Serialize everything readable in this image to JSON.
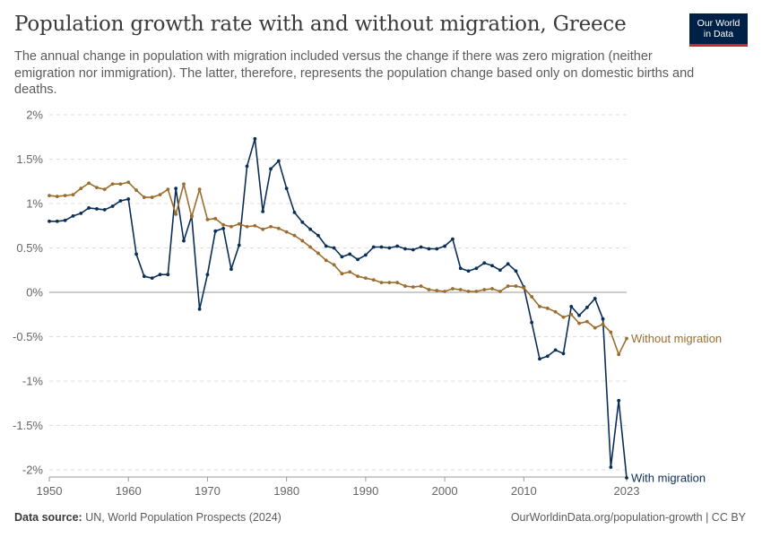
{
  "header": {
    "title": "Population growth rate with and without migration, Greece",
    "subtitle": "The annual change in population with migration included versus the change if there was zero migration (neither emigration nor immigration). The latter, therefore, represents the population change based only on domestic births and deaths."
  },
  "logo": {
    "line1": "Our World",
    "line2": "in Data",
    "bg_color": "#002147",
    "accent_color": "#ce261e"
  },
  "footer": {
    "source_label": "Data source:",
    "source_text": "UN, World Population Prospects (2024)",
    "url_text": "OurWorldinData.org/population-growth | CC BY"
  },
  "chart_data": {
    "type": "line",
    "x_label": "",
    "y_label": "",
    "xlim": [
      1950,
      2023
    ],
    "ylim": [
      -2,
      2
    ],
    "y_ticks": [
      {
        "value": 2,
        "label": "2%"
      },
      {
        "value": 1.5,
        "label": "1.5%"
      },
      {
        "value": 1,
        "label": "1%"
      },
      {
        "value": 0.5,
        "label": "0.5%"
      },
      {
        "value": 0,
        "label": "0%"
      },
      {
        "value": -0.5,
        "label": "-0.5%"
      },
      {
        "value": -1,
        "label": "-1%"
      },
      {
        "value": -1.5,
        "label": "-1.5%"
      },
      {
        "value": -2,
        "label": "-2%"
      }
    ],
    "x_ticks": [
      {
        "value": 1950,
        "label": "1950"
      },
      {
        "value": 1960,
        "label": "1960"
      },
      {
        "value": 1970,
        "label": "1970"
      },
      {
        "value": 1980,
        "label": "1980"
      },
      {
        "value": 1990,
        "label": "1990"
      },
      {
        "value": 2000,
        "label": "2000"
      },
      {
        "value": 2010,
        "label": "2010"
      },
      {
        "value": 2023,
        "label": "2023"
      }
    ],
    "grid": "horizontal-dashed",
    "legend": "line-end labels",
    "x": [
      1950,
      1951,
      1952,
      1953,
      1954,
      1955,
      1956,
      1957,
      1958,
      1959,
      1960,
      1961,
      1962,
      1963,
      1964,
      1965,
      1966,
      1967,
      1968,
      1969,
      1970,
      1971,
      1972,
      1973,
      1974,
      1975,
      1976,
      1977,
      1978,
      1979,
      1980,
      1981,
      1982,
      1983,
      1984,
      1985,
      1986,
      1987,
      1988,
      1989,
      1990,
      1991,
      1992,
      1993,
      1994,
      1995,
      1996,
      1997,
      1998,
      1999,
      2000,
      2001,
      2002,
      2003,
      2004,
      2005,
      2006,
      2007,
      2008,
      2009,
      2010,
      2011,
      2012,
      2013,
      2014,
      2015,
      2016,
      2017,
      2018,
      2019,
      2020,
      2021,
      2022,
      2023
    ],
    "series": [
      {
        "name": "With migration",
        "color": "#0b2e58",
        "values": [
          0.8,
          0.8,
          0.81,
          0.86,
          0.89,
          0.95,
          0.94,
          0.93,
          0.97,
          1.03,
          1.05,
          0.43,
          0.18,
          0.16,
          0.2,
          0.2,
          1.17,
          0.58,
          0.86,
          -0.19,
          0.2,
          0.69,
          0.72,
          0.26,
          0.53,
          1.42,
          1.73,
          0.91,
          1.39,
          1.48,
          1.17,
          0.9,
          0.79,
          0.71,
          0.64,
          0.52,
          0.5,
          0.4,
          0.43,
          0.37,
          0.42,
          0.51,
          0.51,
          0.5,
          0.52,
          0.49,
          0.48,
          0.51,
          0.49,
          0.49,
          0.52,
          0.6,
          0.27,
          0.24,
          0.27,
          0.33,
          0.3,
          0.25,
          0.32,
          0.24,
          0.06,
          -0.34,
          -0.75,
          -0.72,
          -0.65,
          -0.69,
          -0.16,
          -0.26,
          -0.17,
          -0.07,
          -0.3,
          -1.97,
          -1.22,
          -2.09
        ]
      },
      {
        "name": "Without migration",
        "color": "#9c6d2e",
        "values": [
          1.09,
          1.08,
          1.09,
          1.1,
          1.17,
          1.23,
          1.18,
          1.16,
          1.22,
          1.22,
          1.24,
          1.15,
          1.07,
          1.07,
          1.1,
          1.16,
          0.88,
          1.22,
          0.85,
          1.16,
          0.82,
          0.83,
          0.76,
          0.74,
          0.77,
          0.74,
          0.75,
          0.71,
          0.74,
          0.72,
          0.68,
          0.64,
          0.58,
          0.51,
          0.44,
          0.36,
          0.31,
          0.21,
          0.23,
          0.18,
          0.16,
          0.14,
          0.11,
          0.11,
          0.11,
          0.07,
          0.06,
          0.07,
          0.03,
          0.02,
          0.01,
          0.04,
          0.03,
          0.01,
          0.01,
          0.03,
          0.04,
          0.01,
          0.07,
          0.07,
          0.05,
          -0.05,
          -0.16,
          -0.18,
          -0.22,
          -0.28,
          -0.25,
          -0.35,
          -0.33,
          -0.4,
          -0.36,
          -0.45,
          -0.7,
          -0.52
        ]
      }
    ]
  }
}
